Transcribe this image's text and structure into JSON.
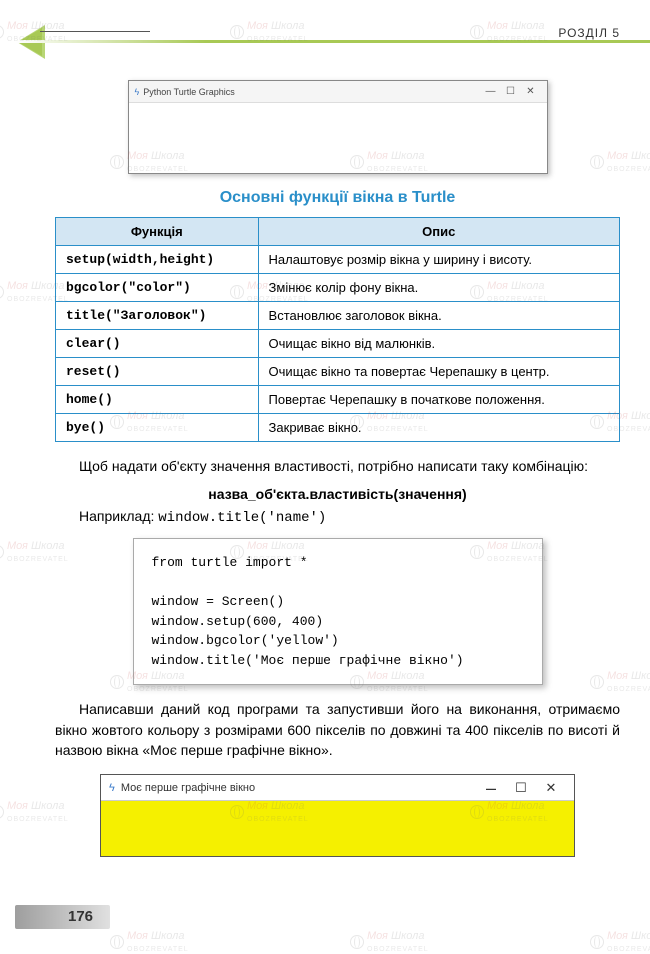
{
  "chapter": "РОЗДІЛ 5",
  "screenshot1": {
    "title": "Python Turtle Graphics"
  },
  "section_title": "Основні функції вікна в Turtle",
  "table": {
    "headers": {
      "func": "Функція",
      "desc": "Опис"
    },
    "rows": [
      {
        "func": "setup(width,height)",
        "desc": "Налаштовує розмір вікна у ширину і висоту."
      },
      {
        "func": "bgcolor(\"color\")",
        "desc": "Змінює колір фону вікна."
      },
      {
        "func": "title(\"Заголовок\")",
        "desc": "Встановлює заголовок вікна."
      },
      {
        "func": "clear()",
        "desc": "Очищає вікно від малюнків."
      },
      {
        "func": "reset()",
        "desc": "Очищає вікно та повертає Черепашку в центр."
      },
      {
        "func": "home()",
        "desc": "Повертає Черепашку в початкове положення."
      },
      {
        "func": "bye()",
        "desc": "Закриває вікно."
      }
    ]
  },
  "para1": "Щоб надати об'єкту значення властивості, потрібно написати таку комбінацію:",
  "syntax": "назва_об'єкта.властивість(значення)",
  "example_label": "Наприклад: ",
  "example_code": "window.title('name')",
  "code": "from turtle import *\n\nwindow = Screen()\nwindow.setup(600, 400)\nwindow.bgcolor('yellow')\nwindow.title('Моє перше графічне вікно')",
  "para2": "Написавши даний код програми та запустивши його на виконання, отримаємо вікно жовтого кольору з розмірами 600 пікселів по довжині та 400 пікселів по висоті й назвою вікна «Моє перше графічне вікно».",
  "screenshot2": {
    "title": "Моє перше графічне вікно",
    "body_color": "#f5f000"
  },
  "page_number": "176",
  "watermark": {
    "t1": "Моя",
    "t2": "Школа",
    "sub": "OBOZREVATEL"
  }
}
